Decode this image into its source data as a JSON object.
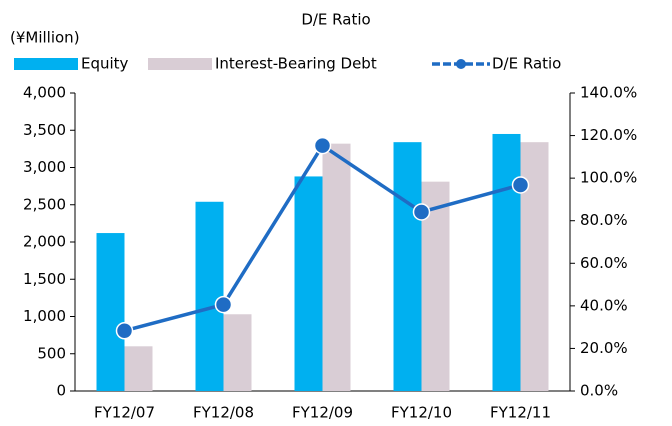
{
  "chart_data": {
    "type": "bar",
    "title": "D/E Ratio",
    "y_label": "(¥Million)",
    "categories": [
      "FY12/07",
      "FY12/08",
      "FY12/09",
      "FY12/10",
      "FY12/11"
    ],
    "series": [
      {
        "name": "Equity",
        "color": "#00b0f0",
        "values": [
          2120,
          2540,
          2880,
          3340,
          3450
        ]
      },
      {
        "name": "Interest-Bearing Debt",
        "color": "#d9cdd5",
        "values": [
          600,
          1030,
          3320,
          2810,
          3340
        ]
      },
      {
        "name": "D/E Ratio",
        "color": "#1f6cc4",
        "type": "line",
        "axis": "y2",
        "values": [
          28.3,
          40.6,
          115.3,
          84.1,
          96.8
        ]
      }
    ],
    "ylim": [
      0,
      4000
    ],
    "yticks": [
      0,
      500,
      {
        "value": 1000,
        "label": "1,000"
      },
      {
        "value": 1500,
        "label": "1,500"
      },
      {
        "value": 2000,
        "label": "2,000"
      },
      {
        "value": 2500,
        "label": "2,500"
      },
      {
        "value": 3000,
        "label": "3,000"
      },
      {
        "value": 3500,
        "label": "3,500"
      },
      {
        "value": 4000,
        "label": "4,000"
      }
    ],
    "y2lim": [
      0,
      140
    ],
    "y2ticks": [
      {
        "value": 0,
        "label": "0.0%"
      },
      {
        "value": 20,
        "label": "20.0%"
      },
      {
        "value": 40,
        "label": "40.0%"
      },
      {
        "value": 60,
        "label": "60.0%"
      },
      {
        "value": 80,
        "label": "80.0%"
      },
      {
        "value": 100,
        "label": "100.0%"
      },
      {
        "value": 120,
        "label": "120.0%"
      },
      {
        "value": 140,
        "label": "140.0%"
      }
    ],
    "legend": "top",
    "grid": false
  }
}
